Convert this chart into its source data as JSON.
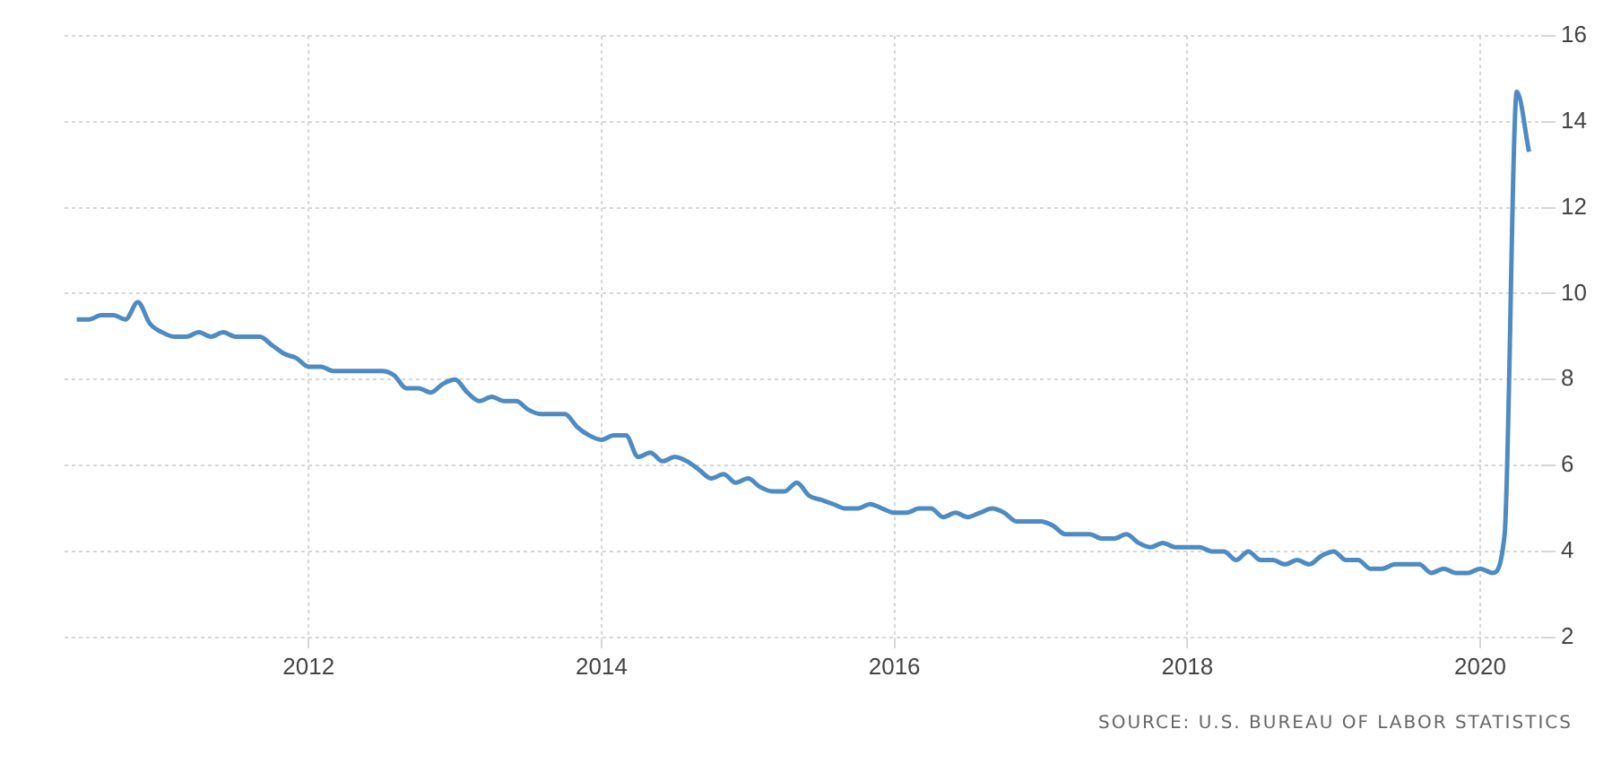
{
  "chart_data": {
    "type": "line",
    "x": [
      "2010-06",
      "2010-07",
      "2010-08",
      "2010-09",
      "2010-10",
      "2010-11",
      "2010-12",
      "2011-01",
      "2011-02",
      "2011-03",
      "2011-04",
      "2011-05",
      "2011-06",
      "2011-07",
      "2011-08",
      "2011-09",
      "2011-10",
      "2011-11",
      "2011-12",
      "2012-01",
      "2012-02",
      "2012-03",
      "2012-04",
      "2012-05",
      "2012-06",
      "2012-07",
      "2012-08",
      "2012-09",
      "2012-10",
      "2012-11",
      "2012-12",
      "2013-01",
      "2013-02",
      "2013-03",
      "2013-04",
      "2013-05",
      "2013-06",
      "2013-07",
      "2013-08",
      "2013-09",
      "2013-10",
      "2013-11",
      "2013-12",
      "2014-01",
      "2014-02",
      "2014-03",
      "2014-04",
      "2014-05",
      "2014-06",
      "2014-07",
      "2014-08",
      "2014-09",
      "2014-10",
      "2014-11",
      "2014-12",
      "2015-01",
      "2015-02",
      "2015-03",
      "2015-04",
      "2015-05",
      "2015-06",
      "2015-07",
      "2015-08",
      "2015-09",
      "2015-10",
      "2015-11",
      "2015-12",
      "2016-01",
      "2016-02",
      "2016-03",
      "2016-04",
      "2016-05",
      "2016-06",
      "2016-07",
      "2016-08",
      "2016-09",
      "2016-10",
      "2016-11",
      "2016-12",
      "2017-01",
      "2017-02",
      "2017-03",
      "2017-04",
      "2017-05",
      "2017-06",
      "2017-07",
      "2017-08",
      "2017-09",
      "2017-10",
      "2017-11",
      "2017-12",
      "2018-01",
      "2018-02",
      "2018-03",
      "2018-04",
      "2018-05",
      "2018-06",
      "2018-07",
      "2018-08",
      "2018-09",
      "2018-10",
      "2018-11",
      "2018-12",
      "2019-01",
      "2019-02",
      "2019-03",
      "2019-04",
      "2019-05",
      "2019-06",
      "2019-07",
      "2019-08",
      "2019-09",
      "2019-10",
      "2019-11",
      "2019-12",
      "2020-01",
      "2020-02",
      "2020-03",
      "2020-04",
      "2020-05"
    ],
    "series": [
      {
        "color": "#4d8bc2",
        "values": [
          9.4,
          9.4,
          9.5,
          9.5,
          9.4,
          9.8,
          9.3,
          9.1,
          9.0,
          9.0,
          9.1,
          9.0,
          9.1,
          9.0,
          9.0,
          9.0,
          8.8,
          8.6,
          8.5,
          8.3,
          8.3,
          8.2,
          8.2,
          8.2,
          8.2,
          8.2,
          8.1,
          7.8,
          7.8,
          7.7,
          7.9,
          8.0,
          7.7,
          7.5,
          7.6,
          7.5,
          7.5,
          7.3,
          7.2,
          7.2,
          7.2,
          6.9,
          6.7,
          6.6,
          6.7,
          6.7,
          6.2,
          6.3,
          6.1,
          6.2,
          6.1,
          5.9,
          5.7,
          5.8,
          5.6,
          5.7,
          5.5,
          5.4,
          5.4,
          5.6,
          5.3,
          5.2,
          5.1,
          5.0,
          5.0,
          5.1,
          5.0,
          4.9,
          4.9,
          5.0,
          5.0,
          4.8,
          4.9,
          4.8,
          4.9,
          5.0,
          4.9,
          4.7,
          4.7,
          4.7,
          4.6,
          4.4,
          4.4,
          4.4,
          4.3,
          4.3,
          4.4,
          4.2,
          4.1,
          4.2,
          4.1,
          4.1,
          4.1,
          4.0,
          4.0,
          3.8,
          4.0,
          3.8,
          3.8,
          3.7,
          3.8,
          3.7,
          3.9,
          4.0,
          3.8,
          3.8,
          3.6,
          3.6,
          3.7,
          3.7,
          3.7,
          3.5,
          3.6,
          3.5,
          3.5,
          3.6,
          3.5,
          4.4,
          14.7,
          13.3
        ]
      }
    ],
    "xlim": [
      "2010-05",
      "2020-06"
    ],
    "xticks": [
      {
        "value": "2012",
        "label": "2012"
      },
      {
        "value": "2014",
        "label": "2014"
      },
      {
        "value": "2016",
        "label": "2016"
      },
      {
        "value": "2018",
        "label": "2018"
      },
      {
        "value": "2020",
        "label": "2020"
      }
    ],
    "ylim": [
      2,
      16
    ],
    "yticks": [
      2,
      4,
      6,
      8,
      10,
      12,
      14,
      16
    ],
    "grid": true,
    "legend": false,
    "marker": "none",
    "line_style": "solid",
    "annotations": [
      "SOURCE: U.S. BUREAU OF LABOR STATISTICS"
    ]
  }
}
